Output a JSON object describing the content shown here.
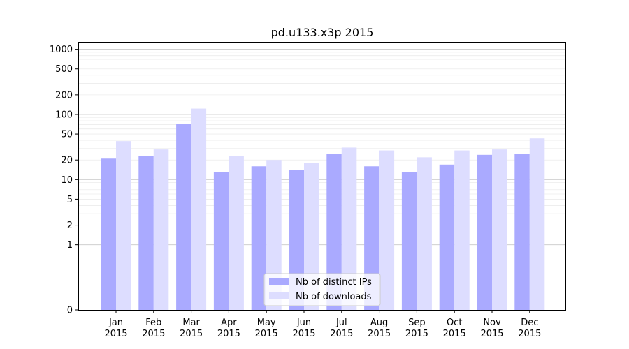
{
  "chart_data": {
    "type": "bar",
    "title": "pd.u133.x3p 2015",
    "xlabel": "",
    "ylabel": "",
    "yscale": "symlog",
    "ylim": [
      0,
      1300
    ],
    "y_ticks": [
      0,
      1,
      2,
      5,
      10,
      20,
      50,
      100,
      200,
      500,
      1000
    ],
    "categories": [
      [
        "Jan",
        "2015"
      ],
      [
        "Feb",
        "2015"
      ],
      [
        "Mar",
        "2015"
      ],
      [
        "Apr",
        "2015"
      ],
      [
        "May",
        "2015"
      ],
      [
        "Jun",
        "2015"
      ],
      [
        "Jul",
        "2015"
      ],
      [
        "Aug",
        "2015"
      ],
      [
        "Sep",
        "2015"
      ],
      [
        "Oct",
        "2015"
      ],
      [
        "Nov",
        "2015"
      ],
      [
        "Dec",
        "2015"
      ]
    ],
    "series": [
      {
        "name": "Nb of distinct IPs",
        "color": "#aaaaff",
        "values": [
          21,
          23,
          71,
          13,
          16,
          14,
          25,
          16,
          13,
          17,
          24,
          25
        ]
      },
      {
        "name": "Nb of downloads",
        "color": "#ddddff",
        "values": [
          39,
          29,
          123,
          23,
          20,
          18,
          31,
          28,
          22,
          28,
          29,
          43
        ]
      }
    ],
    "grid": true,
    "legend_position": "bottom-center"
  }
}
